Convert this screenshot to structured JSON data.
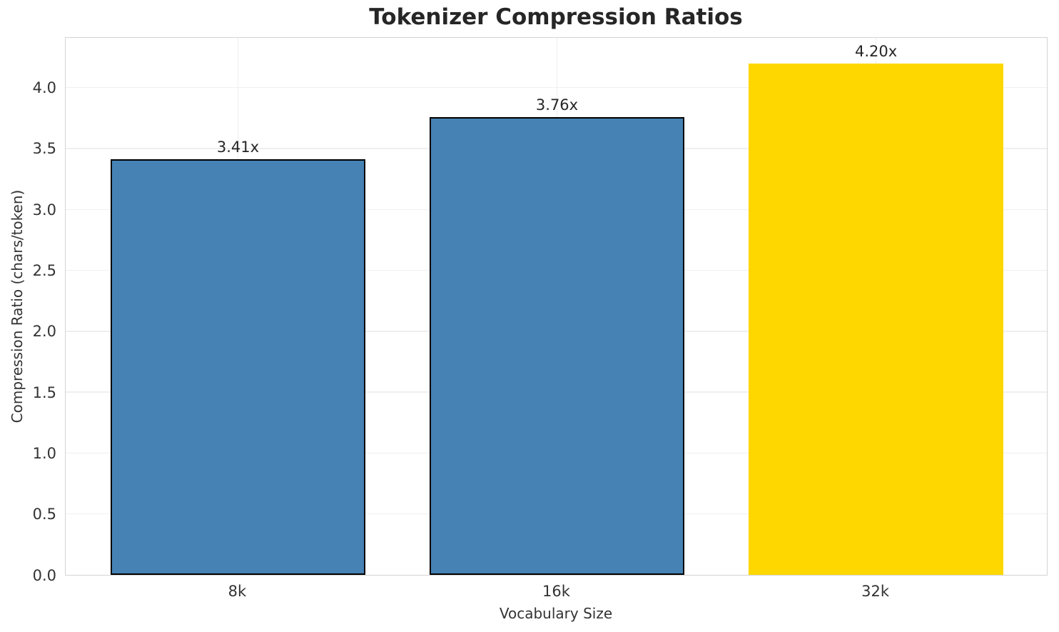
{
  "chart_data": {
    "type": "bar",
    "title": "Tokenizer Compression Ratios",
    "xlabel": "Vocabulary Size",
    "ylabel": "Compression Ratio (chars/token)",
    "categories": [
      "8k",
      "16k",
      "32k"
    ],
    "values": [
      3.41,
      3.76,
      4.2
    ],
    "bar_labels": [
      "3.41x",
      "3.76x",
      "4.20x"
    ],
    "bar_colors": [
      "#4682B4",
      "#4682B4",
      "#FFD700"
    ],
    "bar_edge_colors": [
      "#000000",
      "#000000",
      "none"
    ],
    "bar_width_units": 0.8,
    "xlim": [
      -0.54,
      2.54
    ],
    "ylim": [
      0,
      4.42
    ],
    "yticks": [
      0,
      0.5,
      1,
      1.5,
      2,
      2.5,
      3,
      3.5,
      4
    ],
    "ytick_labels": [
      "0.0",
      "0.5",
      "1.0",
      "1.5",
      "2.0",
      "2.5",
      "3.0",
      "3.5",
      "4.0"
    ],
    "grid": true,
    "legend_position": "none",
    "colors": {
      "steel_blue": "#4682B4",
      "gold": "#FFD700",
      "text": "#262626",
      "grid": "#efefef",
      "spine": "#d4d4d4",
      "background": "#ffffff"
    }
  }
}
